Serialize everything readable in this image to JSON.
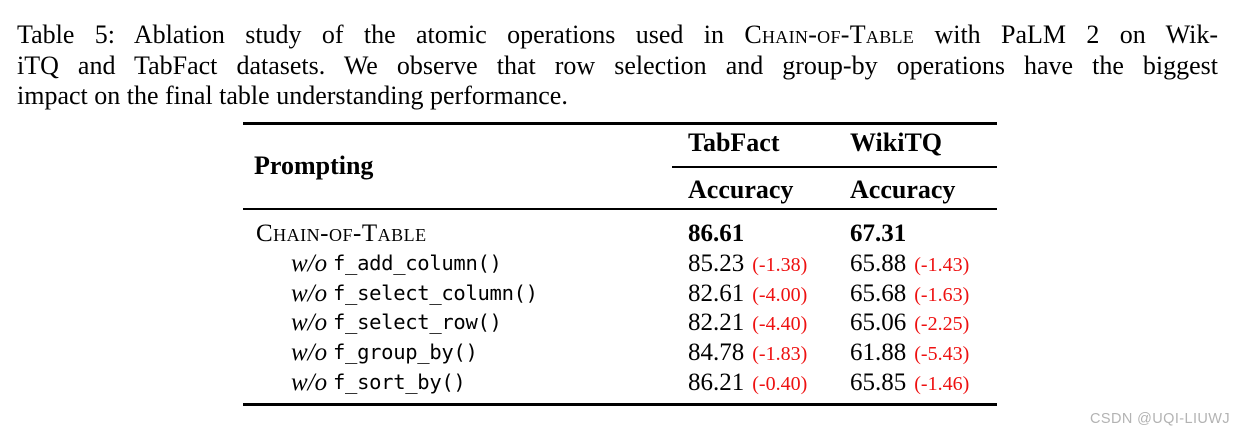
{
  "page": {
    "watermark": "CSDN @UQI-LIUWJ",
    "colors": {
      "text": "#000000",
      "delta_red": "#ee1111",
      "watermark_gray": "#b3b3b3",
      "background": "#ffffff"
    }
  },
  "caption": {
    "lines": [
      {
        "justify": true,
        "segments": [
          {
            "text": "Table 5: Ablation study of the atomic operations used in "
          },
          {
            "text": "Chain-of-Table",
            "smallcaps": true
          },
          {
            "text": " with PaLM 2 on Wik-"
          }
        ]
      },
      {
        "justify": true,
        "segments": [
          {
            "text": "iTQ and TabFact datasets. We observe that row selection and group-by operations have the biggest"
          }
        ]
      },
      {
        "justify": false,
        "segments": [
          {
            "text": "impact on the final table understanding performance."
          }
        ]
      }
    ]
  },
  "table": {
    "header": {
      "prompting": "Prompting",
      "groups": [
        "TabFact",
        "WikiTQ"
      ],
      "subheaders": [
        "Accuracy",
        "Accuracy"
      ]
    },
    "rows": [
      {
        "label": {
          "smallcaps": "Chain-of-Table"
        },
        "cells": [
          {
            "value": "86.61",
            "bold": true
          },
          {
            "value": "67.31",
            "bold": true
          }
        ]
      },
      {
        "label": {
          "wo": "w/o",
          "fn": "f_add_column()"
        },
        "cells": [
          {
            "value": "85.23",
            "delta": "(-1.38)"
          },
          {
            "value": "65.88",
            "delta": "(-1.43)"
          }
        ]
      },
      {
        "label": {
          "wo": "w/o",
          "fn": "f_select_column()"
        },
        "cells": [
          {
            "value": "82.61",
            "delta": "(-4.00)"
          },
          {
            "value": "65.68",
            "delta": "(-1.63)"
          }
        ]
      },
      {
        "label": {
          "wo": "w/o",
          "fn": "f_select_row()"
        },
        "cells": [
          {
            "value": "82.21",
            "delta": "(-4.40)"
          },
          {
            "value": "65.06",
            "delta": "(-2.25)"
          }
        ]
      },
      {
        "label": {
          "wo": "w/o",
          "fn": "f_group_by()"
        },
        "cells": [
          {
            "value": "84.78",
            "delta": "(-1.83)"
          },
          {
            "value": "61.88",
            "delta": "(-5.43)"
          }
        ]
      },
      {
        "label": {
          "wo": "w/o",
          "fn": "f_sort_by()"
        },
        "cells": [
          {
            "value": "86.21",
            "delta": "(-0.40)"
          },
          {
            "value": "65.85",
            "delta": "(-1.46)"
          }
        ]
      }
    ]
  }
}
